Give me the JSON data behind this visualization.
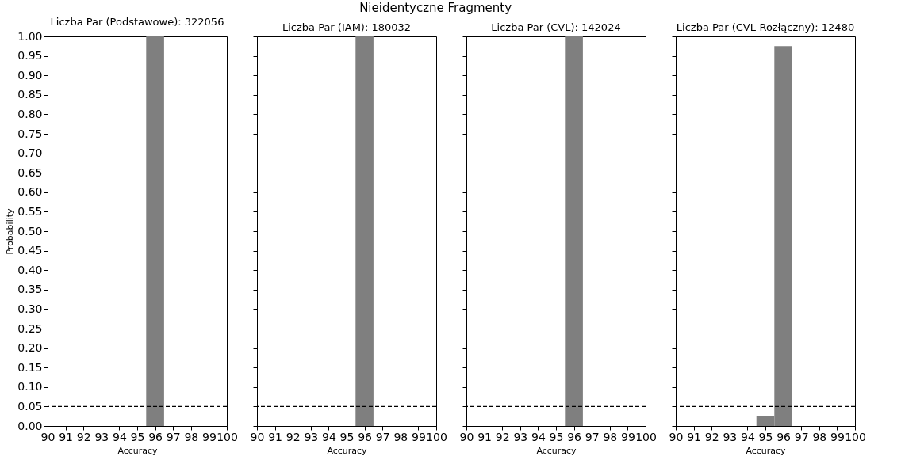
{
  "chart_data": [
    {
      "type": "histogram",
      "title": "Liczba Par (Podstawowe): 322056",
      "annotations": [
        "Nieidentyczne Fragmenty"
      ],
      "xlabel": "Accuracy",
      "ylabel": "Probability",
      "bins": [
        95.5,
        96.5
      ],
      "values": [
        1.0
      ],
      "color": "#7f7f7f",
      "xlim": [
        90,
        100
      ],
      "ylim": [
        0,
        1
      ],
      "xticks": [
        90,
        91,
        92,
        93,
        94,
        95,
        96,
        97,
        98,
        99,
        100
      ],
      "yticks": [
        {
          "value": 0,
          "label": "0.00"
        },
        0.05,
        {
          "value": 0.1,
          "label": "0.10"
        },
        0.15,
        {
          "value": 0.2,
          "label": "0.20"
        },
        0.25,
        {
          "value": 0.3,
          "label": "0.30"
        },
        0.35,
        {
          "value": 0.4,
          "label": "0.40"
        },
        0.45,
        {
          "value": 0.5,
          "label": "0.50"
        },
        0.55,
        {
          "value": 0.6,
          "label": "0.60"
        },
        0.65,
        {
          "value": 0.7,
          "label": "0.70"
        },
        0.75,
        {
          "value": 0.8,
          "label": "0.80"
        },
        0.85,
        {
          "value": 0.9,
          "label": "0.90"
        },
        0.95,
        {
          "value": 1,
          "label": "1.00"
        }
      ],
      "ref_lines": [
        {
          "axis": "y",
          "value": 0.05,
          "color": "#000000",
          "line_style": "dashed"
        }
      ],
      "grid": false
    },
    {
      "type": "histogram",
      "title": "Liczba Par (IAM): 180032",
      "xlabel": "Accuracy",
      "bins": [
        95.5,
        96.5
      ],
      "values": [
        1.0
      ],
      "color": "#7f7f7f",
      "xlim": [
        90,
        100
      ],
      "ylim": [
        0,
        1
      ],
      "xticks": [
        90,
        91,
        92,
        93,
        94,
        95,
        96,
        97,
        98,
        99,
        100
      ],
      "yticks": [
        0,
        0.05,
        0.1,
        0.15,
        0.2,
        0.25,
        0.3,
        0.35,
        0.4,
        0.45,
        0.5,
        0.55,
        0.6,
        0.65,
        0.7,
        0.75,
        0.8,
        0.85,
        0.9,
        0.95,
        1
      ],
      "tick_labels": "x",
      "ref_lines": [
        {
          "axis": "y",
          "value": 0.05,
          "color": "#000000",
          "line_style": "dashed"
        }
      ],
      "grid": false
    },
    {
      "type": "histogram",
      "title": "Liczba Par (CVL): 142024",
      "xlabel": "Accuracy",
      "bins": [
        95.5,
        96.5
      ],
      "values": [
        1.0
      ],
      "color": "#7f7f7f",
      "xlim": [
        90,
        100
      ],
      "ylim": [
        0,
        1
      ],
      "xticks": [
        90,
        91,
        92,
        93,
        94,
        95,
        96,
        97,
        98,
        99,
        100
      ],
      "yticks": [
        0,
        0.05,
        0.1,
        0.15,
        0.2,
        0.25,
        0.3,
        0.35,
        0.4,
        0.45,
        0.5,
        0.55,
        0.6,
        0.65,
        0.7,
        0.75,
        0.8,
        0.85,
        0.9,
        0.95,
        1
      ],
      "tick_labels": "x",
      "ref_lines": [
        {
          "axis": "y",
          "value": 0.05,
          "color": "#000000",
          "line_style": "dashed"
        }
      ],
      "grid": false
    },
    {
      "type": "histogram",
      "title": "Liczba Par (CVL-Rozłączny): 12480",
      "xlabel": "Accuracy",
      "bins": [
        94.5,
        95.5,
        96.5
      ],
      "values": [
        0.025,
        0.975
      ],
      "color": "#7f7f7f",
      "xlim": [
        90,
        100
      ],
      "ylim": [
        0,
        1
      ],
      "xticks": [
        90,
        91,
        92,
        93,
        94,
        95,
        96,
        97,
        98,
        99,
        100
      ],
      "yticks": [
        0,
        0.05,
        0.1,
        0.15,
        0.2,
        0.25,
        0.3,
        0.35,
        0.4,
        0.45,
        0.5,
        0.55,
        0.6,
        0.65,
        0.7,
        0.75,
        0.8,
        0.85,
        0.9,
        0.95,
        1
      ],
      "tick_labels": "x",
      "ref_lines": [
        {
          "axis": "y",
          "value": 0.05,
          "color": "#000000",
          "line_style": "dashed"
        }
      ],
      "grid": false
    }
  ]
}
